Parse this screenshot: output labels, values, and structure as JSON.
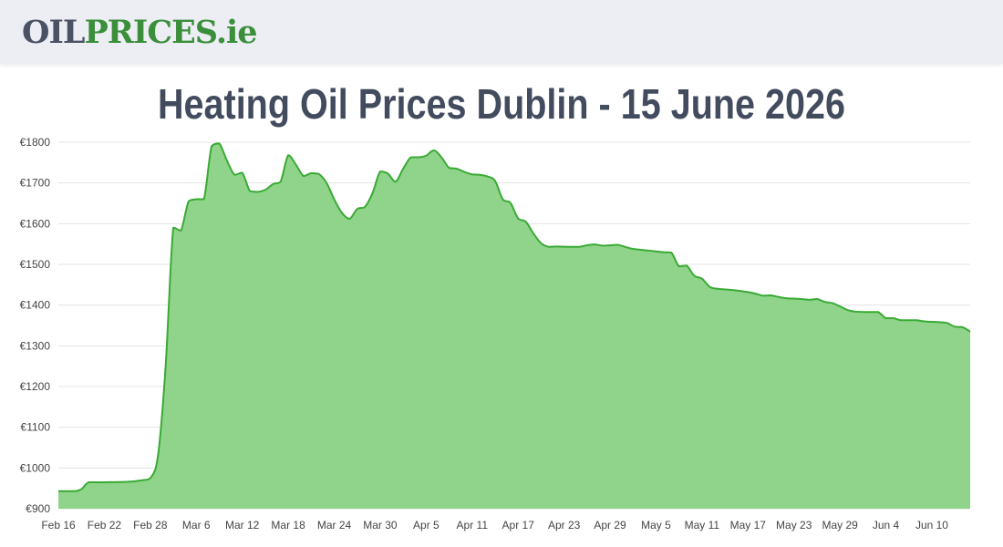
{
  "logo": {
    "part1": "OIL",
    "part2": "PRICES",
    "part3": ".ie"
  },
  "title": "Heating Oil Prices Dublin - 15 June 2026",
  "colors": {
    "line": "#3aaa35",
    "fill": "#8fd48a",
    "grid": "#e3e3e3",
    "header_bg": "#eceef4",
    "title": "#434c5e",
    "logo_dark": "#4a5263",
    "logo_green": "#3b8f3b"
  },
  "chart_data": {
    "type": "area",
    "title": "Heating Oil Prices Dublin - 15 June 2026",
    "xlabel": "",
    "ylabel": "",
    "ylim": [
      900,
      1800
    ],
    "yticks": [
      "€900",
      "€1000",
      "€1100",
      "€1200",
      "€1300",
      "€1400",
      "€1500",
      "€1600",
      "€1700",
      "€1800"
    ],
    "ytick_values": [
      900,
      1000,
      1100,
      1200,
      1300,
      1400,
      1500,
      1600,
      1700,
      1800
    ],
    "xlim": [
      "2026-02-16",
      "2026-06-15"
    ],
    "xticks": [
      {
        "date": "2026-02-16",
        "label": "Feb 16"
      },
      {
        "date": "2026-02-22",
        "label": "Feb 22"
      },
      {
        "date": "2026-02-28",
        "label": "Feb 28"
      },
      {
        "date": "2026-03-06",
        "label": "Mar 6"
      },
      {
        "date": "2026-03-12",
        "label": "Mar 12"
      },
      {
        "date": "2026-03-18",
        "label": "Mar 18"
      },
      {
        "date": "2026-03-24",
        "label": "Mar 24"
      },
      {
        "date": "2026-03-30",
        "label": "Mar 30"
      },
      {
        "date": "2026-04-05",
        "label": "Apr 5"
      },
      {
        "date": "2026-04-11",
        "label": "Apr 11"
      },
      {
        "date": "2026-04-17",
        "label": "Apr 17"
      },
      {
        "date": "2026-04-23",
        "label": "Apr 23"
      },
      {
        "date": "2026-04-29",
        "label": "Apr 29"
      },
      {
        "date": "2026-05-05",
        "label": "May 5"
      },
      {
        "date": "2026-05-11",
        "label": "May 11"
      },
      {
        "date": "2026-05-17",
        "label": "May 17"
      },
      {
        "date": "2026-05-23",
        "label": "May 23"
      },
      {
        "date": "2026-05-29",
        "label": "May 29"
      },
      {
        "date": "2026-06-04",
        "label": "Jun 4"
      },
      {
        "date": "2026-06-10",
        "label": "Jun 10"
      }
    ],
    "grid": true,
    "legend": "none",
    "series": [
      {
        "points": [
          [
            "2026-02-16",
            943
          ],
          [
            "2026-02-18",
            943
          ],
          [
            "2026-02-19",
            948
          ],
          [
            "2026-02-20",
            965
          ],
          [
            "2026-02-22",
            965
          ],
          [
            "2026-02-25",
            966
          ],
          [
            "2026-02-27",
            970
          ],
          [
            "2026-02-28",
            975
          ],
          [
            "2026-03-01",
            1030
          ],
          [
            "2026-03-02",
            1250
          ],
          [
            "2026-03-03",
            1590
          ],
          [
            "2026-03-04",
            1583
          ],
          [
            "2026-03-05",
            1655
          ],
          [
            "2026-03-06",
            1660
          ],
          [
            "2026-03-07",
            1660
          ],
          [
            "2026-03-08",
            1790
          ],
          [
            "2026-03-09",
            1797
          ],
          [
            "2026-03-10",
            1755
          ],
          [
            "2026-03-11",
            1720
          ],
          [
            "2026-03-12",
            1725
          ],
          [
            "2026-03-13",
            1680
          ],
          [
            "2026-03-14",
            1678
          ],
          [
            "2026-03-15",
            1683
          ],
          [
            "2026-03-16",
            1697
          ],
          [
            "2026-03-17",
            1703
          ],
          [
            "2026-03-18",
            1768
          ],
          [
            "2026-03-19",
            1745
          ],
          [
            "2026-03-20",
            1717
          ],
          [
            "2026-03-21",
            1724
          ],
          [
            "2026-03-22",
            1722
          ],
          [
            "2026-03-23",
            1700
          ],
          [
            "2026-03-24",
            1660
          ],
          [
            "2026-03-25",
            1627
          ],
          [
            "2026-03-26",
            1612
          ],
          [
            "2026-03-27",
            1636
          ],
          [
            "2026-03-28",
            1641
          ],
          [
            "2026-03-29",
            1675
          ],
          [
            "2026-03-30",
            1728
          ],
          [
            "2026-03-31",
            1723
          ],
          [
            "2026-04-01",
            1703
          ],
          [
            "2026-04-02",
            1735
          ],
          [
            "2026-04-03",
            1763
          ],
          [
            "2026-04-04",
            1763
          ],
          [
            "2026-04-05",
            1767
          ],
          [
            "2026-04-06",
            1780
          ],
          [
            "2026-04-07",
            1763
          ],
          [
            "2026-04-08",
            1737
          ],
          [
            "2026-04-09",
            1735
          ],
          [
            "2026-04-10",
            1727
          ],
          [
            "2026-04-11",
            1721
          ],
          [
            "2026-04-12",
            1720
          ],
          [
            "2026-04-13",
            1716
          ],
          [
            "2026-04-14",
            1705
          ],
          [
            "2026-04-15",
            1660
          ],
          [
            "2026-04-16",
            1651
          ],
          [
            "2026-04-17",
            1613
          ],
          [
            "2026-04-18",
            1605
          ],
          [
            "2026-04-19",
            1576
          ],
          [
            "2026-04-20",
            1552
          ],
          [
            "2026-04-21",
            1543
          ],
          [
            "2026-04-22",
            1544
          ],
          [
            "2026-04-24",
            1543
          ],
          [
            "2026-04-25",
            1543
          ],
          [
            "2026-04-26",
            1547
          ],
          [
            "2026-04-27",
            1549
          ],
          [
            "2026-04-28",
            1546
          ],
          [
            "2026-04-29",
            1547
          ],
          [
            "2026-04-30",
            1548
          ],
          [
            "2026-05-01",
            1543
          ],
          [
            "2026-05-02",
            1538
          ],
          [
            "2026-05-04",
            1534
          ],
          [
            "2026-05-06",
            1530
          ],
          [
            "2026-05-07",
            1529
          ],
          [
            "2026-05-08",
            1495
          ],
          [
            "2026-05-09",
            1497
          ],
          [
            "2026-05-10",
            1472
          ],
          [
            "2026-05-11",
            1465
          ],
          [
            "2026-05-12",
            1445
          ],
          [
            "2026-05-13",
            1440
          ],
          [
            "2026-05-15",
            1437
          ],
          [
            "2026-05-17",
            1432
          ],
          [
            "2026-05-18",
            1428
          ],
          [
            "2026-05-19",
            1423
          ],
          [
            "2026-05-20",
            1424
          ],
          [
            "2026-05-21",
            1420
          ],
          [
            "2026-05-22",
            1417
          ],
          [
            "2026-05-24",
            1415
          ],
          [
            "2026-05-25",
            1413
          ],
          [
            "2026-05-26",
            1415
          ],
          [
            "2026-05-27",
            1408
          ],
          [
            "2026-05-28",
            1405
          ],
          [
            "2026-05-29",
            1397
          ],
          [
            "2026-05-30",
            1388
          ],
          [
            "2026-05-31",
            1384
          ],
          [
            "2026-06-02",
            1383
          ],
          [
            "2026-06-03",
            1383
          ],
          [
            "2026-06-04",
            1368
          ],
          [
            "2026-06-05",
            1368
          ],
          [
            "2026-06-06",
            1363
          ],
          [
            "2026-06-08",
            1363
          ],
          [
            "2026-06-09",
            1360
          ],
          [
            "2026-06-11",
            1358
          ],
          [
            "2026-06-12",
            1356
          ],
          [
            "2026-06-13",
            1347
          ],
          [
            "2026-06-14",
            1346
          ],
          [
            "2026-06-15",
            1335
          ]
        ]
      }
    ]
  }
}
